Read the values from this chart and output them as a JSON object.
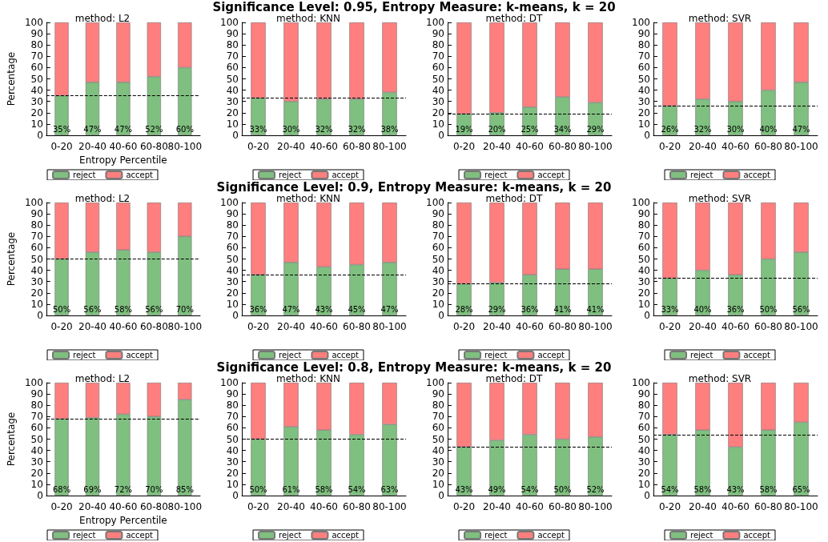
{
  "chart_data": [
    {
      "type": "other",
      "title": "Significance Level: 0.95, Entropy Measure: k-means, k = 20"
    },
    {
      "type": "bar",
      "title": "method: L2",
      "xlabel": "Entropy Percentile",
      "ylabel": "Percentage",
      "categories": [
        "0-20",
        "20-40",
        "40-60",
        "60-80",
        "80-100"
      ],
      "stacked": true,
      "legend": "bottom",
      "ylim": [
        0,
        100
      ],
      "yticks": [
        0,
        10,
        20,
        30,
        40,
        50,
        60,
        70,
        80,
        90,
        100
      ],
      "ref_lines": [
        {
          "axis": "y",
          "value": 35,
          "color": "#000000",
          "line_style": "dashed"
        }
      ],
      "series": [
        {
          "name": "reject",
          "color": "#7fbf7f",
          "values": [
            35,
            47,
            47,
            52,
            60
          ],
          "value_labels": [
            "35%",
            "47%",
            "47%",
            "52%",
            "60%"
          ]
        },
        {
          "name": "accept",
          "color": "#ff7f7f",
          "values": [
            65,
            53,
            53,
            48,
            40
          ]
        }
      ]
    },
    {
      "type": "bar",
      "title": "method: KNN",
      "categories": [
        "0-20",
        "20-40",
        "40-60",
        "60-80",
        "80-100"
      ],
      "stacked": true,
      "legend": "bottom",
      "ylim": [
        0,
        100
      ],
      "yticks": [
        0,
        10,
        20,
        30,
        40,
        50,
        60,
        70,
        80,
        90,
        100
      ],
      "ref_lines": [
        {
          "axis": "y",
          "value": 33,
          "color": "#000000",
          "line_style": "dashed"
        }
      ],
      "series": [
        {
          "name": "reject",
          "color": "#7fbf7f",
          "values": [
            33,
            30,
            32,
            32,
            38
          ],
          "value_labels": [
            "33%",
            "30%",
            "32%",
            "32%",
            "38%"
          ]
        },
        {
          "name": "accept",
          "color": "#ff7f7f",
          "values": [
            67,
            70,
            68,
            68,
            62
          ]
        }
      ]
    },
    {
      "type": "bar",
      "title": "method: DT",
      "categories": [
        "0-20",
        "20-40",
        "40-60",
        "60-80",
        "80-100"
      ],
      "stacked": true,
      "legend": "bottom",
      "ylim": [
        0,
        100
      ],
      "yticks": [
        0,
        10,
        20,
        30,
        40,
        50,
        60,
        70,
        80,
        90,
        100
      ],
      "ref_lines": [
        {
          "axis": "y",
          "value": 19,
          "color": "#000000",
          "line_style": "dashed"
        }
      ],
      "series": [
        {
          "name": "reject",
          "color": "#7fbf7f",
          "values": [
            19,
            20,
            25,
            34,
            29
          ],
          "value_labels": [
            "19%",
            "20%",
            "25%",
            "34%",
            "29%"
          ]
        },
        {
          "name": "accept",
          "color": "#ff7f7f",
          "values": [
            81,
            80,
            75,
            66,
            71
          ]
        }
      ]
    },
    {
      "type": "bar",
      "title": "method: SVR",
      "categories": [
        "0-20",
        "20-40",
        "40-60",
        "60-80",
        "80-100"
      ],
      "stacked": true,
      "legend": "bottom",
      "ylim": [
        0,
        100
      ],
      "yticks": [
        0,
        10,
        20,
        30,
        40,
        50,
        60,
        70,
        80,
        90,
        100
      ],
      "ref_lines": [
        {
          "axis": "y",
          "value": 26,
          "color": "#000000",
          "line_style": "dashed"
        }
      ],
      "series": [
        {
          "name": "reject",
          "color": "#7fbf7f",
          "values": [
            26,
            32,
            30,
            40,
            47
          ],
          "value_labels": [
            "26%",
            "32%",
            "30%",
            "40%",
            "47%"
          ]
        },
        {
          "name": "accept",
          "color": "#ff7f7f",
          "values": [
            74,
            68,
            70,
            60,
            53
          ]
        }
      ]
    },
    {
      "type": "other",
      "title": "Significance Level: 0.9, Entropy Measure: k-means, k = 20"
    },
    {
      "type": "bar",
      "title": "method: L2",
      "ylabel": "Percentage",
      "categories": [
        "0-20",
        "20-40",
        "40-60",
        "60-80",
        "80-100"
      ],
      "stacked": true,
      "legend": "bottom",
      "ylim": [
        0,
        100
      ],
      "yticks": [
        0,
        10,
        20,
        30,
        40,
        50,
        60,
        70,
        80,
        90,
        100
      ],
      "ref_lines": [
        {
          "axis": "y",
          "value": 50,
          "color": "#000000",
          "line_style": "dashed"
        }
      ],
      "series": [
        {
          "name": "reject",
          "color": "#7fbf7f",
          "values": [
            50,
            56,
            58,
            56,
            70
          ],
          "value_labels": [
            "50%",
            "56%",
            "58%",
            "56%",
            "70%"
          ]
        },
        {
          "name": "accept",
          "color": "#ff7f7f",
          "values": [
            50,
            44,
            42,
            44,
            30
          ]
        }
      ]
    },
    {
      "type": "bar",
      "title": "method: KNN",
      "categories": [
        "0-20",
        "20-40",
        "40-60",
        "60-80",
        "80-100"
      ],
      "stacked": true,
      "legend": "bottom",
      "ylim": [
        0,
        100
      ],
      "yticks": [
        0,
        10,
        20,
        30,
        40,
        50,
        60,
        70,
        80,
        90,
        100
      ],
      "ref_lines": [
        {
          "axis": "y",
          "value": 36,
          "color": "#000000",
          "line_style": "dashed"
        }
      ],
      "series": [
        {
          "name": "reject",
          "color": "#7fbf7f",
          "values": [
            36,
            47,
            43,
            45,
            47
          ],
          "value_labels": [
            "36%",
            "47%",
            "43%",
            "45%",
            "47%"
          ]
        },
        {
          "name": "accept",
          "color": "#ff7f7f",
          "values": [
            64,
            53,
            57,
            55,
            53
          ]
        }
      ]
    },
    {
      "type": "bar",
      "title": "method: DT",
      "categories": [
        "0-20",
        "20-40",
        "40-60",
        "60-80",
        "80-100"
      ],
      "stacked": true,
      "legend": "bottom",
      "ylim": [
        0,
        100
      ],
      "yticks": [
        0,
        10,
        20,
        30,
        40,
        50,
        60,
        70,
        80,
        90,
        100
      ],
      "ref_lines": [
        {
          "axis": "y",
          "value": 28,
          "color": "#000000",
          "line_style": "dashed"
        }
      ],
      "series": [
        {
          "name": "reject",
          "color": "#7fbf7f",
          "values": [
            28,
            29,
            36,
            41,
            41
          ],
          "value_labels": [
            "28%",
            "29%",
            "36%",
            "41%",
            "41%"
          ]
        },
        {
          "name": "accept",
          "color": "#ff7f7f",
          "values": [
            72,
            71,
            64,
            59,
            59
          ]
        }
      ]
    },
    {
      "type": "bar",
      "title": "method: SVR",
      "categories": [
        "0-20",
        "20-40",
        "40-60",
        "60-80",
        "80-100"
      ],
      "stacked": true,
      "legend": "bottom",
      "ylim": [
        0,
        100
      ],
      "yticks": [
        0,
        10,
        20,
        30,
        40,
        50,
        60,
        70,
        80,
        90,
        100
      ],
      "ref_lines": [
        {
          "axis": "y",
          "value": 33,
          "color": "#000000",
          "line_style": "dashed"
        }
      ],
      "series": [
        {
          "name": "reject",
          "color": "#7fbf7f",
          "values": [
            33,
            40,
            36,
            50,
            56
          ],
          "value_labels": [
            "33%",
            "40%",
            "36%",
            "50%",
            "56%"
          ]
        },
        {
          "name": "accept",
          "color": "#ff7f7f",
          "values": [
            67,
            60,
            64,
            50,
            44
          ]
        }
      ]
    },
    {
      "type": "other",
      "title": "Significance Level: 0.8, Entropy Measure: k-means, k = 20"
    },
    {
      "type": "bar",
      "title": "method: L2",
      "xlabel": "Entropy Percentile",
      "ylabel": "Percentage",
      "categories": [
        "0-20",
        "20-40",
        "40-60",
        "60-80",
        "80-100"
      ],
      "stacked": true,
      "legend": "bottom",
      "ylim": [
        0,
        100
      ],
      "yticks": [
        0,
        10,
        20,
        30,
        40,
        50,
        60,
        70,
        80,
        90,
        100
      ],
      "ref_lines": [
        {
          "axis": "y",
          "value": 68,
          "color": "#000000",
          "line_style": "dashed"
        }
      ],
      "series": [
        {
          "name": "reject",
          "color": "#7fbf7f",
          "values": [
            68,
            69,
            72,
            70,
            85
          ],
          "value_labels": [
            "68%",
            "69%",
            "72%",
            "70%",
            "85%"
          ]
        },
        {
          "name": "accept",
          "color": "#ff7f7f",
          "values": [
            32,
            31,
            28,
            30,
            15
          ]
        }
      ]
    },
    {
      "type": "bar",
      "title": "method: KNN",
      "categories": [
        "0-20",
        "20-40",
        "40-60",
        "60-80",
        "80-100"
      ],
      "stacked": true,
      "legend": "bottom",
      "ylim": [
        0,
        100
      ],
      "yticks": [
        0,
        10,
        20,
        30,
        40,
        50,
        60,
        70,
        80,
        90,
        100
      ],
      "ref_lines": [
        {
          "axis": "y",
          "value": 50,
          "color": "#000000",
          "line_style": "dashed"
        }
      ],
      "series": [
        {
          "name": "reject",
          "color": "#7fbf7f",
          "values": [
            50,
            61,
            58,
            54,
            63
          ],
          "value_labels": [
            "50%",
            "61%",
            "58%",
            "54%",
            "63%"
          ]
        },
        {
          "name": "accept",
          "color": "#ff7f7f",
          "values": [
            50,
            39,
            42,
            46,
            37
          ]
        }
      ]
    },
    {
      "type": "bar",
      "title": "method: DT",
      "categories": [
        "0-20",
        "20-40",
        "40-60",
        "60-80",
        "80-100"
      ],
      "stacked": true,
      "legend": "bottom",
      "ylim": [
        0,
        100
      ],
      "yticks": [
        0,
        10,
        20,
        30,
        40,
        50,
        60,
        70,
        80,
        90,
        100
      ],
      "ref_lines": [
        {
          "axis": "y",
          "value": 43,
          "color": "#000000",
          "line_style": "dashed"
        }
      ],
      "series": [
        {
          "name": "reject",
          "color": "#7fbf7f",
          "values": [
            43,
            49,
            54,
            50,
            52
          ],
          "value_labels": [
            "43%",
            "49%",
            "54%",
            "50%",
            "52%"
          ]
        },
        {
          "name": "accept",
          "color": "#ff7f7f",
          "values": [
            57,
            51,
            46,
            50,
            48
          ]
        }
      ]
    },
    {
      "type": "bar",
      "title": "method: SVR",
      "categories": [
        "0-20",
        "20-40",
        "40-60",
        "60-80",
        "80-100"
      ],
      "stacked": true,
      "legend": "bottom",
      "ylim": [
        0,
        100
      ],
      "yticks": [
        0,
        10,
        20,
        30,
        40,
        50,
        60,
        70,
        80,
        90,
        100
      ],
      "ref_lines": [
        {
          "axis": "y",
          "value": 54,
          "color": "#000000",
          "line_style": "dashed"
        }
      ],
      "series": [
        {
          "name": "reject",
          "color": "#7fbf7f",
          "values": [
            54,
            58,
            43,
            58,
            65
          ],
          "value_labels": [
            "54%",
            "58%",
            "43%",
            "58%",
            "65%"
          ]
        },
        {
          "name": "accept",
          "color": "#ff7f7f",
          "values": [
            46,
            42,
            57,
            42,
            35
          ]
        }
      ]
    }
  ]
}
